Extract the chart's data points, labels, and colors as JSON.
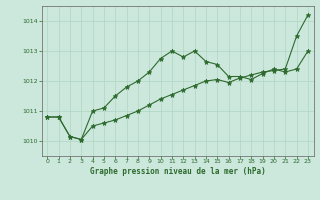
{
  "title": "Graphe pression niveau de la mer (hPa)",
  "background_color": "#cce8dc",
  "line_color": "#2d6a2d",
  "grid_color": "#b0d4c0",
  "xlim": [
    -0.5,
    23.5
  ],
  "ylim": [
    1009.5,
    1014.5
  ],
  "yticks": [
    1010,
    1011,
    1012,
    1013,
    1014
  ],
  "xticks": [
    0,
    1,
    2,
    3,
    4,
    5,
    6,
    7,
    8,
    9,
    10,
    11,
    12,
    13,
    14,
    15,
    16,
    17,
    18,
    19,
    20,
    21,
    22,
    23
  ],
  "series1_x": [
    0,
    1,
    2,
    3,
    4,
    5,
    6,
    7,
    8,
    9,
    10,
    11,
    12,
    13,
    14,
    15,
    16,
    17,
    18,
    19,
    20,
    21,
    22,
    23
  ],
  "series1_y": [
    1010.8,
    1010.8,
    1010.15,
    1010.05,
    1011.0,
    1011.1,
    1011.5,
    1011.8,
    1012.0,
    1012.3,
    1012.75,
    1013.0,
    1012.8,
    1013.0,
    1012.65,
    1012.55,
    1012.15,
    1012.15,
    1012.05,
    1012.25,
    1012.4,
    1012.3,
    1012.4,
    1013.0
  ],
  "series2_x": [
    0,
    1,
    2,
    3,
    4,
    5,
    6,
    7,
    8,
    9,
    10,
    11,
    12,
    13,
    14,
    15,
    16,
    17,
    18,
    19,
    20,
    21,
    22,
    23
  ],
  "series2_y": [
    1010.8,
    1010.8,
    1010.15,
    1010.05,
    1010.5,
    1010.6,
    1010.7,
    1010.85,
    1011.0,
    1011.2,
    1011.4,
    1011.55,
    1011.7,
    1011.85,
    1012.0,
    1012.05,
    1011.95,
    1012.1,
    1012.2,
    1012.3,
    1012.35,
    1012.4,
    1013.5,
    1014.2
  ]
}
